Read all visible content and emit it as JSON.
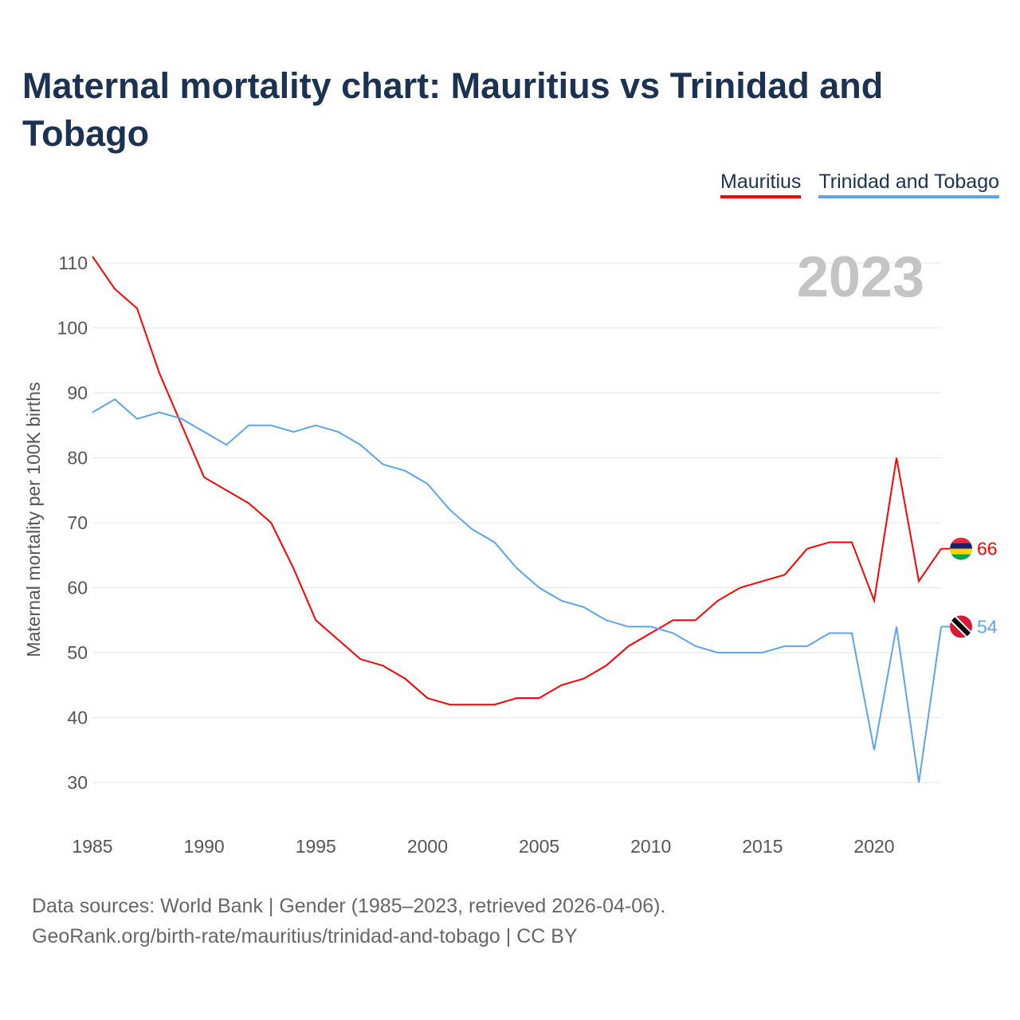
{
  "chart_data": {
    "type": "line",
    "title": "Maternal mortality chart: Mauritius vs Trinidad and Tobago",
    "xlabel": "",
    "ylabel": "Maternal mortality per 100K births",
    "year_label": "2023",
    "xlim": [
      1985,
      2023
    ],
    "ylim": [
      25,
      113
    ],
    "x_ticks": [
      1985,
      1990,
      1995,
      2000,
      2005,
      2010,
      2015,
      2020
    ],
    "y_ticks": [
      30,
      40,
      50,
      60,
      70,
      80,
      90,
      100,
      110
    ],
    "grid": true,
    "legend_position": "top-right",
    "x": [
      1985,
      1986,
      1987,
      1988,
      1989,
      1990,
      1991,
      1992,
      1993,
      1994,
      1995,
      1996,
      1997,
      1998,
      1999,
      2000,
      2001,
      2002,
      2003,
      2004,
      2005,
      2006,
      2007,
      2008,
      2009,
      2010,
      2011,
      2012,
      2013,
      2014,
      2015,
      2016,
      2017,
      2018,
      2019,
      2020,
      2021,
      2022,
      2023
    ],
    "series": [
      {
        "name": "Mauritius",
        "color": "#ff0000",
        "end_label": "66",
        "values": [
          111,
          106,
          103,
          93,
          85,
          77,
          75,
          73,
          70,
          63,
          55,
          52,
          49,
          48,
          46,
          43,
          42,
          42,
          42,
          43,
          43,
          45,
          46,
          48,
          51,
          53,
          55,
          55,
          58,
          60,
          61,
          62,
          66,
          67,
          67,
          58,
          80,
          61,
          66
        ]
      },
      {
        "name": "Trinidad and Tobago",
        "color": "#5ba4ee",
        "end_label": "54",
        "values": [
          87,
          89,
          86,
          87,
          86,
          84,
          82,
          85,
          85,
          84,
          85,
          84,
          82,
          79,
          78,
          76,
          72,
          69,
          67,
          63,
          60,
          58,
          57,
          55,
          54,
          54,
          53,
          51,
          50,
          50,
          50,
          51,
          51,
          53,
          53,
          35,
          54,
          30,
          54
        ]
      }
    ]
  },
  "source": {
    "line1": "Data sources: World Bank | Gender (1985–2023, retrieved 2026-04-06).",
    "line2": "GeoRank.org/birth-rate/mauritius/trinidad-and-tobago | CC BY"
  }
}
